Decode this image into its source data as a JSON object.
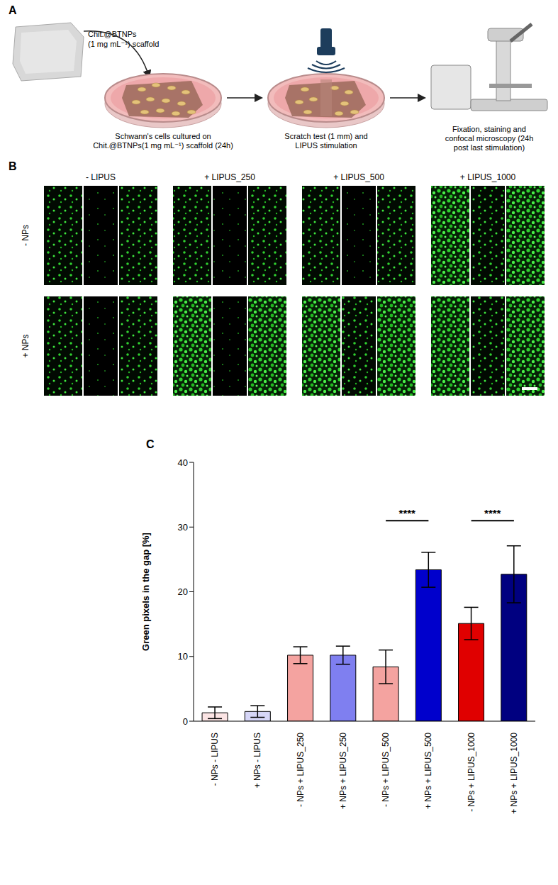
{
  "panel_a": {
    "letter": "A",
    "scaffold_label": [
      "Chit.@BTNPs",
      "(1 mg mL⁻¹) scaffold"
    ],
    "steps": [
      {
        "caption": [
          "Schwann's cells cultured on",
          "Chit.@BTNPs(1 mg mL⁻¹) scaffold (24h)"
        ]
      },
      {
        "caption": [
          "Scratch test (1 mm) and",
          "LIPUS stimulation"
        ]
      },
      {
        "caption": [
          "Fixation, staining and",
          "confocal microscopy (24h",
          "post last stimulation)"
        ]
      }
    ]
  },
  "panel_b": {
    "letter": "B",
    "columns": [
      "- LIPUS",
      "+ LIPUS_250",
      "+ LIPUS_500",
      "+ LIPUS_1000"
    ],
    "rows": [
      "- NPs",
      "+ NPs"
    ]
  },
  "panel_c": {
    "letter": "C"
  },
  "chart_data": {
    "type": "bar",
    "y_label": "Green pixels in the gap [%]",
    "categories": [
      "- NPs - LIPUS",
      "+ NPs - LIPUS",
      "- NPs + LIPUS_250",
      "+ NPs + LIPUS_250",
      "- NPs + LIPUS_500",
      "+ NPs + LIPUS_500",
      "- NPs + LIPUS_1000",
      "+ NPs + LIPUS_1000"
    ],
    "values": [
      1.3,
      1.5,
      10.2,
      10.2,
      8.4,
      23.4,
      15.1,
      22.7
    ],
    "errors": [
      0.9,
      0.9,
      1.3,
      1.4,
      2.6,
      2.7,
      2.5,
      4.4
    ],
    "colors": [
      "#fbe4e4",
      "#d6d6f7",
      "#f4a3a0",
      "#7f7ff0",
      "#f4a3a0",
      "#0000cc",
      "#e00000",
      "#000080"
    ],
    "ylim": [
      0,
      40
    ],
    "yticks": [
      0,
      10,
      20,
      30,
      40
    ],
    "grid": false,
    "annotations": [
      {
        "text": "****",
        "between": [
          4,
          5
        ],
        "y": 31
      },
      {
        "text": "****",
        "between": [
          6,
          7
        ],
        "y": 31
      }
    ]
  }
}
